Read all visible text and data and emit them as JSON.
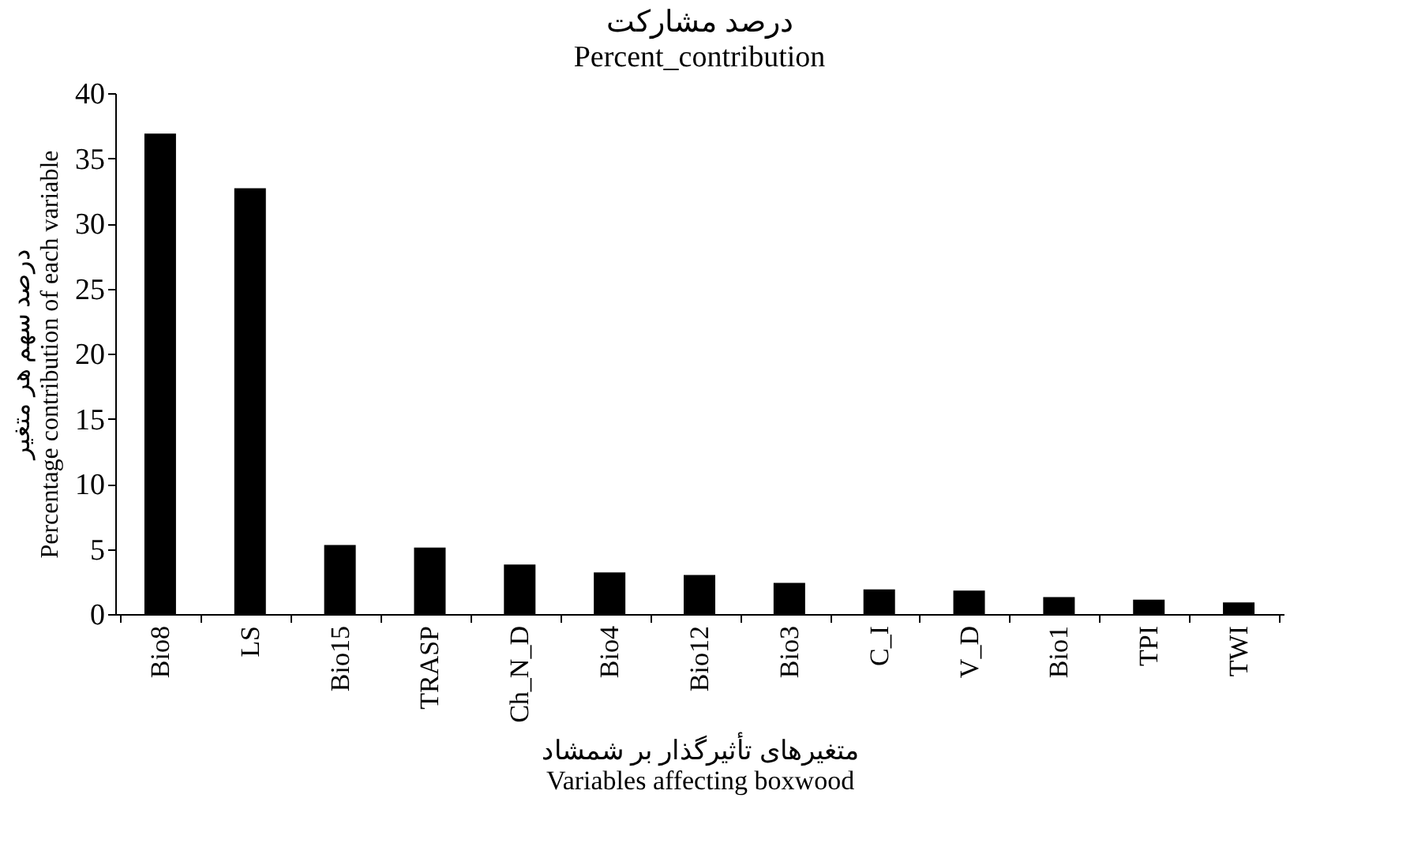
{
  "chart_data": {
    "type": "bar",
    "title": "درصد مشارکت",
    "subtitle": "Percent_contribution",
    "xlabel": "متغیرهای تأثیرگذار بر شمشاد\nVariables affecting boxwood",
    "ylabel": "درصد سهم هر متغیر\nPercentage contribution of each variable",
    "categories": [
      "Bio8",
      "LS",
      "Bio15",
      "TRASP",
      "Ch_N_D",
      "Bio4",
      "Bio12",
      "Bio3",
      "C_I",
      "V_D",
      "Bio1",
      "TPI",
      "TWI"
    ],
    "values": [
      36.9,
      32.7,
      5.3,
      5.1,
      3.8,
      3.2,
      3.0,
      2.4,
      1.9,
      1.8,
      1.3,
      1.1,
      0.9
    ],
    "color": "#000000",
    "ylim": [
      0,
      40
    ],
    "yticks": [
      0,
      5,
      10,
      15,
      20,
      25,
      30,
      35,
      40
    ],
    "grid": false
  }
}
